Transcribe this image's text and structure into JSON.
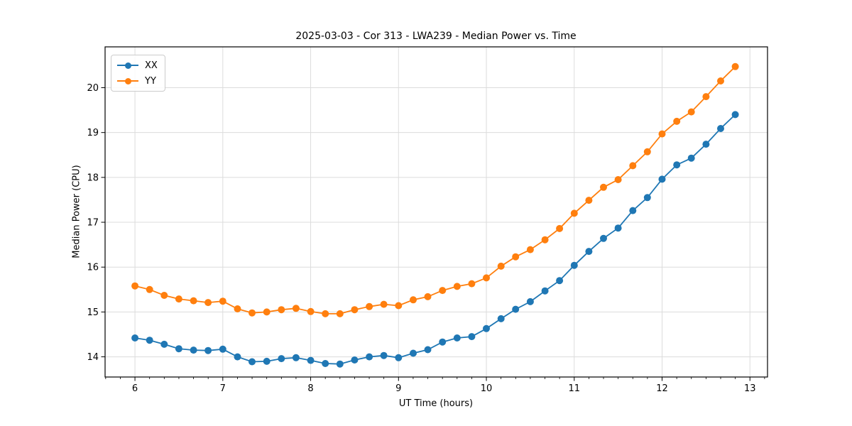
{
  "chart_data": {
    "type": "line",
    "title": "2025-03-03 - Cor 313 - LWA239 - Median Power vs. Time",
    "xlabel": "UT Time (hours)",
    "ylabel": "Median Power (CPU)",
    "xlim": [
      5.66,
      13.2
    ],
    "ylim": [
      13.55,
      20.91
    ],
    "x_ticks": [
      6,
      7,
      8,
      9,
      10,
      11,
      12,
      13
    ],
    "y_ticks": [
      14,
      15,
      16,
      17,
      18,
      19,
      20
    ],
    "x_minor_tick_step": 0.1667,
    "grid": true,
    "grid_color": "#dcdcdc",
    "legend_position": "upper left",
    "x": [
      6.0,
      6.167,
      6.333,
      6.5,
      6.667,
      6.833,
      7.0,
      7.167,
      7.333,
      7.5,
      7.667,
      7.833,
      8.0,
      8.167,
      8.333,
      8.5,
      8.667,
      8.833,
      9.0,
      9.167,
      9.333,
      9.5,
      9.667,
      9.833,
      10.0,
      10.167,
      10.333,
      10.5,
      10.667,
      10.833,
      11.0,
      11.167,
      11.333,
      11.5,
      11.667,
      11.833,
      12.0,
      12.167,
      12.333,
      12.5,
      12.667,
      12.833
    ],
    "series": [
      {
        "name": "XX",
        "color": "#1f77b4",
        "values": [
          14.42,
          14.37,
          14.28,
          14.18,
          14.15,
          14.14,
          14.17,
          14.0,
          13.89,
          13.9,
          13.96,
          13.98,
          13.92,
          13.85,
          13.84,
          13.93,
          14.0,
          14.03,
          13.98,
          14.08,
          14.16,
          14.33,
          14.42,
          14.45,
          14.63,
          14.85,
          15.06,
          15.23,
          15.47,
          15.7,
          16.04,
          16.35,
          16.64,
          16.87,
          17.26,
          17.55,
          17.96,
          18.28,
          18.43,
          18.74,
          19.09,
          19.4
        ]
      },
      {
        "name": "YY",
        "color": "#ff7f0e",
        "values": [
          15.58,
          15.5,
          15.37,
          15.29,
          15.25,
          15.21,
          15.24,
          15.07,
          14.98,
          15.0,
          15.05,
          15.08,
          15.01,
          14.96,
          14.96,
          15.05,
          15.12,
          15.17,
          15.14,
          15.27,
          15.34,
          15.48,
          15.57,
          15.63,
          15.76,
          16.02,
          16.23,
          16.39,
          16.61,
          16.86,
          17.2,
          17.49,
          17.78,
          17.95,
          18.26,
          18.57,
          18.97,
          19.25,
          19.46,
          19.8,
          20.15,
          20.47
        ]
      }
    ]
  }
}
